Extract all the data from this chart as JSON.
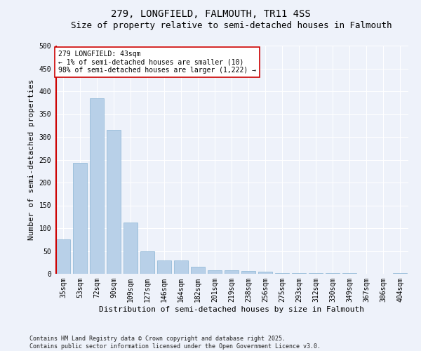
{
  "title1": "279, LONGFIELD, FALMOUTH, TR11 4SS",
  "title2": "Size of property relative to semi-detached houses in Falmouth",
  "xlabel": "Distribution of semi-detached houses by size in Falmouth",
  "ylabel": "Number of semi-detached properties",
  "categories": [
    "35sqm",
    "53sqm",
    "72sqm",
    "90sqm",
    "109sqm",
    "127sqm",
    "146sqm",
    "164sqm",
    "182sqm",
    "201sqm",
    "219sqm",
    "238sqm",
    "256sqm",
    "275sqm",
    "293sqm",
    "312sqm",
    "330sqm",
    "349sqm",
    "367sqm",
    "386sqm",
    "404sqm"
  ],
  "values": [
    75,
    243,
    385,
    315,
    113,
    50,
    30,
    30,
    15,
    8,
    8,
    6,
    4,
    2,
    2,
    1,
    1,
    1,
    0,
    0,
    1
  ],
  "bar_color": "#b8d0e8",
  "bar_edge_color": "#8ab4d4",
  "highlight_color": "#cc0000",
  "annotation_text": "279 LONGFIELD: 43sqm\n← 1% of semi-detached houses are smaller (10)\n98% of semi-detached houses are larger (1,222) →",
  "annotation_box_color": "#ffffff",
  "annotation_box_edge_color": "#cc0000",
  "ylim": [
    0,
    500
  ],
  "yticks": [
    0,
    50,
    100,
    150,
    200,
    250,
    300,
    350,
    400,
    450,
    500
  ],
  "background_color": "#eef2fa",
  "footer_text": "Contains HM Land Registry data © Crown copyright and database right 2025.\nContains public sector information licensed under the Open Government Licence v3.0.",
  "title_fontsize": 10,
  "subtitle_fontsize": 9,
  "tick_fontsize": 7,
  "ylabel_fontsize": 8,
  "xlabel_fontsize": 8,
  "annotation_fontsize": 7,
  "footer_fontsize": 6
}
